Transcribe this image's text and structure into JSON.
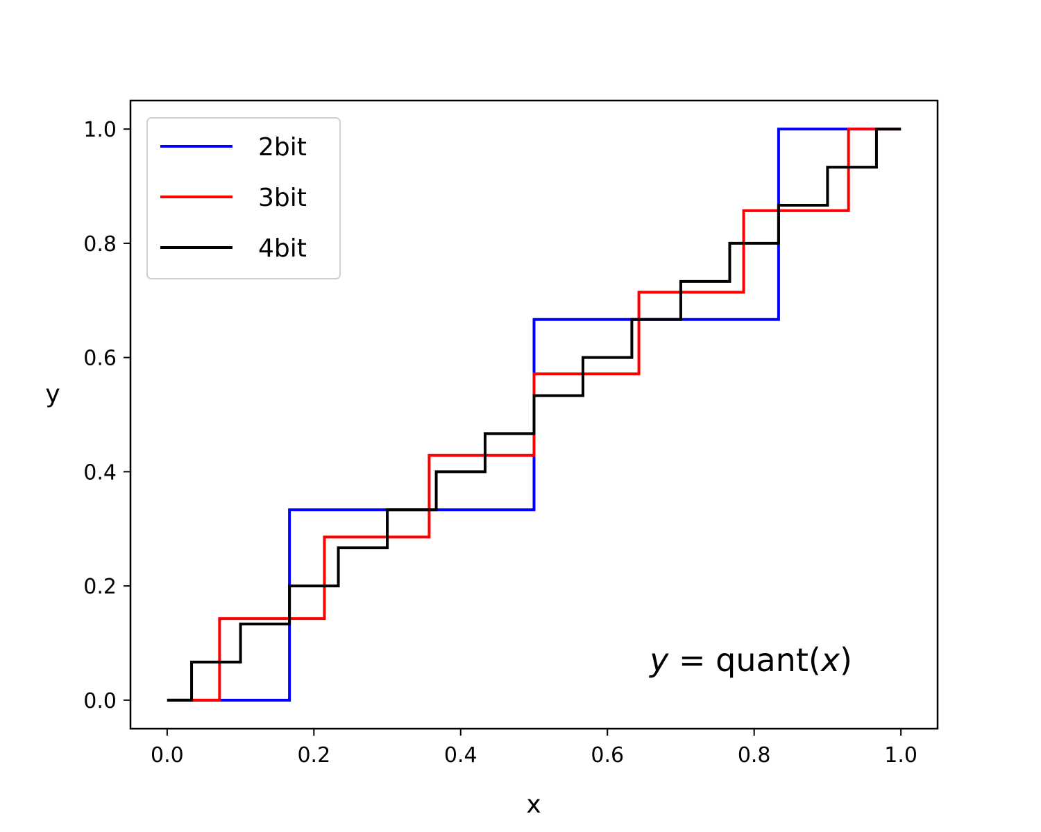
{
  "chart_data": {
    "type": "line",
    "title": "",
    "xlabel": "x",
    "ylabel": "y",
    "xlim": [
      -0.05,
      1.05
    ],
    "ylim": [
      -0.05,
      1.05
    ],
    "xticks": [
      "0.0",
      "0.2",
      "0.4",
      "0.6",
      "0.8",
      "1.0"
    ],
    "yticks": [
      "0.0",
      "0.2",
      "0.4",
      "0.6",
      "0.8",
      "1.0"
    ],
    "grid": false,
    "legend_position": "upper-left",
    "annotation": {
      "parts": [
        {
          "text": "y",
          "italic": true
        },
        {
          "text": " = quant(",
          "italic": false
        },
        {
          "text": "x",
          "italic": true
        },
        {
          "text": ")",
          "italic": false
        }
      ]
    },
    "series": [
      {
        "name": "2bit",
        "color": "#0000ff",
        "x": [
          0.0,
          0.1667,
          0.1667,
          0.5,
          0.5,
          0.8333,
          0.8333,
          1.0
        ],
        "y": [
          0.0,
          0.0,
          0.3333,
          0.3333,
          0.6667,
          0.6667,
          1.0,
          1.0
        ]
      },
      {
        "name": "3bit",
        "color": "#ff0000",
        "x": [
          0.0,
          0.0714,
          0.0714,
          0.2143,
          0.2143,
          0.3571,
          0.3571,
          0.5,
          0.5,
          0.6429,
          0.6429,
          0.7857,
          0.7857,
          0.9286,
          0.9286,
          1.0
        ],
        "y": [
          0.0,
          0.0,
          0.1429,
          0.1429,
          0.2857,
          0.2857,
          0.4286,
          0.4286,
          0.5714,
          0.5714,
          0.7143,
          0.7143,
          0.8571,
          0.8571,
          1.0,
          1.0
        ]
      },
      {
        "name": "4bit",
        "color": "#000000",
        "x": [
          0.0,
          0.0333,
          0.0333,
          0.1,
          0.1,
          0.1667,
          0.1667,
          0.2333,
          0.2333,
          0.3,
          0.3,
          0.3667,
          0.3667,
          0.4333,
          0.4333,
          0.5,
          0.5,
          0.5667,
          0.5667,
          0.6333,
          0.6333,
          0.7,
          0.7,
          0.7667,
          0.7667,
          0.8333,
          0.8333,
          0.9,
          0.9,
          0.9667,
          0.9667,
          1.0
        ],
        "y": [
          0.0,
          0.0,
          0.0667,
          0.0667,
          0.1333,
          0.1333,
          0.2,
          0.2,
          0.2667,
          0.2667,
          0.3333,
          0.3333,
          0.4,
          0.4,
          0.4667,
          0.4667,
          0.5333,
          0.5333,
          0.6,
          0.6,
          0.6667,
          0.6667,
          0.7333,
          0.7333,
          0.8,
          0.8,
          0.8667,
          0.8667,
          0.9333,
          0.9333,
          1.0,
          1.0
        ]
      }
    ]
  }
}
